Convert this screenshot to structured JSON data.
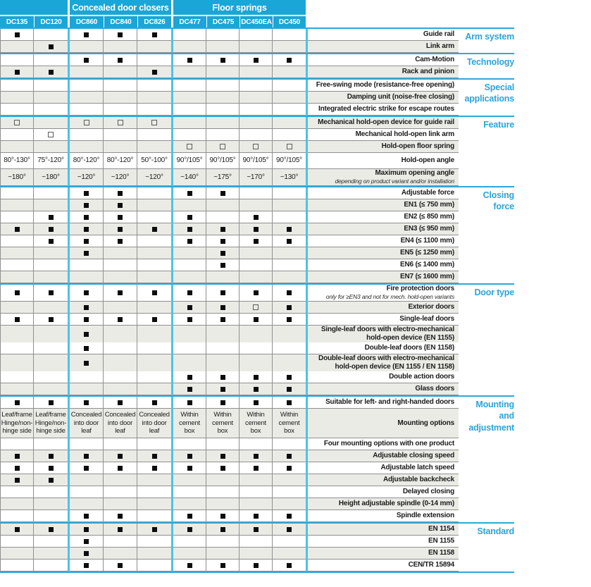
{
  "colors": {
    "header_cyan": "#1AA6D6",
    "divider_cyan": "#4FC2E5",
    "rule_cyan": "#2AA9DA",
    "category_text_cyan": "#2BA4D9",
    "stripe_gray": "#EBEBE6",
    "border_gray": "#8F8F8F",
    "mark_black": "#0D0D0D"
  },
  "legend": {
    "f": "filled-square",
    "h": "hollow-square",
    "": "empty"
  },
  "header": {
    "groups": [
      {
        "label": "",
        "span": 2
      },
      {
        "label": "Concealed door closers",
        "span": 3
      },
      {
        "label": "Floor springs",
        "span": 4
      }
    ],
    "products": [
      "DC135",
      "DC120",
      "DC860",
      "DC840",
      "DC826",
      "DC477",
      "DC475",
      "DC450EA",
      "DC450"
    ]
  },
  "sections": [
    {
      "category": "Arm system",
      "rows": [
        {
          "label": "Guide rail",
          "cells": [
            "f",
            "",
            "f",
            "f",
            "f",
            "",
            "",
            "",
            ""
          ]
        },
        {
          "label": "Link arm",
          "cells": [
            "",
            "f",
            "",
            "",
            "",
            "",
            "",
            "",
            ""
          ]
        }
      ]
    },
    {
      "category": "Technology",
      "rows": [
        {
          "label": "Cam-Motion",
          "cells": [
            "",
            "",
            "f",
            "f",
            "",
            "f",
            "f",
            "f",
            "f"
          ]
        },
        {
          "label": "Rack and pinion",
          "cells": [
            "f",
            "f",
            "",
            "",
            "f",
            "",
            "",
            "",
            ""
          ]
        }
      ]
    },
    {
      "category": "Special applications",
      "rows": [
        {
          "label": "Free-swing mode (resistance-free opening)",
          "cells": [
            "",
            "",
            "",
            "",
            "",
            "",
            "",
            "",
            ""
          ]
        },
        {
          "label": "Damping unit (noise-free closing)",
          "cells": [
            "",
            "",
            "",
            "",
            "",
            "",
            "",
            "",
            ""
          ]
        },
        {
          "label": "Integrated electric strike for escape routes",
          "cells": [
            "",
            "",
            "",
            "",
            "",
            "",
            "",
            "",
            ""
          ]
        }
      ]
    },
    {
      "category": "Feature",
      "rows": [
        {
          "label": "Mechanical hold-open device for guide rail",
          "cells": [
            "h",
            "",
            "h",
            "h",
            "h",
            "",
            "",
            "",
            ""
          ]
        },
        {
          "label": "Mechanical hold-open link arm",
          "cells": [
            "",
            "h",
            "",
            "",
            "",
            "",
            "",
            "",
            ""
          ]
        },
        {
          "label": "Hold-open floor spring",
          "cells": [
            "",
            "",
            "",
            "",
            "",
            "h",
            "h",
            "h",
            "h"
          ]
        },
        {
          "label": "Hold-open angle",
          "type": "text",
          "cells": [
            "80°-130°",
            "75°-120°",
            "80°-120°",
            "80°-120°",
            "50°-100°",
            "90°/105°",
            "90°/105°",
            "90°/105°",
            "90°/105°"
          ]
        },
        {
          "label": "Maximum opening angle",
          "sublabel": "depending on product variant and/or installation",
          "type": "text",
          "cells": [
            "~180°",
            "~180°",
            "~120°",
            "~120°",
            "~120°",
            "~140°",
            "~175°",
            "~170°",
            "~130°"
          ]
        }
      ]
    },
    {
      "category": "Closing force",
      "rows": [
        {
          "label": "Adjustable force",
          "cells": [
            "",
            "",
            "f",
            "f",
            "",
            "f",
            "f",
            "",
            ""
          ]
        },
        {
          "label": "EN1 (≤ 750 mm)",
          "cells": [
            "",
            "",
            "f",
            "f",
            "",
            "",
            "",
            "",
            ""
          ]
        },
        {
          "label": "EN2 (≤ 850 mm)",
          "cells": [
            "",
            "f",
            "f",
            "f",
            "",
            "f",
            "",
            "f",
            ""
          ]
        },
        {
          "label": "EN3 (≤ 950 mm)",
          "cells": [
            "f",
            "f",
            "f",
            "f",
            "f",
            "f",
            "f",
            "f",
            "f"
          ]
        },
        {
          "label": "EN4 (≤ 1100 mm)",
          "cells": [
            "",
            "f",
            "f",
            "f",
            "",
            "f",
            "f",
            "f",
            "f"
          ]
        },
        {
          "label": "EN5 (≤ 1250 mm)",
          "cells": [
            "",
            "",
            "f",
            "",
            "",
            "",
            "f",
            "",
            ""
          ]
        },
        {
          "label": "EN6 (≤ 1400 mm)",
          "cells": [
            "",
            "",
            "",
            "",
            "",
            "",
            "f",
            "",
            ""
          ]
        },
        {
          "label": "EN7 (≤ 1600 mm)",
          "cells": [
            "",
            "",
            "",
            "",
            "",
            "",
            "",
            "",
            ""
          ]
        }
      ]
    },
    {
      "category": "Door type",
      "rows": [
        {
          "label": "Fire protection doors",
          "sublabel": "only for ≥EN3 and not for mech. hold-open variants",
          "cells": [
            "f",
            "f",
            "f",
            "f",
            "f",
            "f",
            "f",
            "f",
            "f"
          ]
        },
        {
          "label": "Exterior doors",
          "cells": [
            "",
            "",
            "f",
            "",
            "",
            "f",
            "f",
            "h",
            "f"
          ]
        },
        {
          "label": "Single-leaf doors",
          "cells": [
            "f",
            "f",
            "f",
            "f",
            "f",
            "f",
            "f",
            "f",
            "f"
          ]
        },
        {
          "label": "Single-leaf doors with electro-mechanical hold-open device (EN 1155)",
          "cells": [
            "",
            "",
            "f",
            "",
            "",
            "",
            "",
            "",
            ""
          ]
        },
        {
          "label": "Double-leaf doors (EN 1158)",
          "cells": [
            "",
            "",
            "f",
            "",
            "",
            "",
            "",
            "",
            ""
          ]
        },
        {
          "label": "Double-leaf doors with electro-mechanical hold-open device (EN 1155 / EN 1158)",
          "cells": [
            "",
            "",
            "f",
            "",
            "",
            "",
            "",
            "",
            ""
          ]
        },
        {
          "label": "Double action doors",
          "cells": [
            "",
            "",
            "",
            "",
            "",
            "f",
            "f",
            "f",
            "f"
          ]
        },
        {
          "label": "Glass doors",
          "cells": [
            "",
            "",
            "",
            "",
            "",
            "f",
            "f",
            "f",
            "f"
          ]
        }
      ]
    },
    {
      "category": "Mounting and adjustment",
      "rows": [
        {
          "label": "Suitable for left- and right-handed doors",
          "cells": [
            "f",
            "f",
            "f",
            "f",
            "f",
            "f",
            "f",
            "f",
            "f"
          ]
        },
        {
          "label": "Mounting options",
          "type": "text",
          "cells": [
            "Leaf/frame\nHinge/non-hinge side",
            "Leaf/frame\nHinge/non-hinge side",
            "Concealed into door leaf",
            "Concealed into door leaf",
            "Concealed into door leaf",
            "Within cement box",
            "Within cement box",
            "Within cement box",
            "Within cement box"
          ]
        },
        {
          "label": "Four mounting options with one product",
          "cells": [
            "",
            "",
            "",
            "",
            "",
            "",
            "",
            "",
            ""
          ]
        },
        {
          "label": "Adjustable closing speed",
          "cells": [
            "f",
            "f",
            "f",
            "f",
            "f",
            "f",
            "f",
            "f",
            "f"
          ]
        },
        {
          "label": "Adjustable latch speed",
          "cells": [
            "f",
            "f",
            "f",
            "f",
            "f",
            "f",
            "f",
            "f",
            "f"
          ]
        },
        {
          "label": "Adjustable backcheck",
          "cells": [
            "f",
            "f",
            "",
            "",
            "",
            "",
            "",
            "",
            ""
          ]
        },
        {
          "label": "Delayed closing",
          "cells": [
            "",
            "",
            "",
            "",
            "",
            "",
            "",
            "",
            ""
          ]
        },
        {
          "label": "Height adjustable spindle (0-14 mm)",
          "cells": [
            "",
            "",
            "",
            "",
            "",
            "",
            "",
            "",
            ""
          ]
        },
        {
          "label": "Spindle extension",
          "cells": [
            "",
            "",
            "f",
            "f",
            "",
            "f",
            "f",
            "f",
            "f"
          ]
        }
      ]
    },
    {
      "category": "Standard",
      "rows": [
        {
          "label": "EN 1154",
          "cells": [
            "f",
            "f",
            "f",
            "f",
            "f",
            "f",
            "f",
            "f",
            "f"
          ]
        },
        {
          "label": "EN 1155",
          "cells": [
            "",
            "",
            "f",
            "",
            "",
            "",
            "",
            "",
            ""
          ]
        },
        {
          "label": "EN 1158",
          "cells": [
            "",
            "",
            "f",
            "",
            "",
            "",
            "",
            "",
            ""
          ]
        },
        {
          "label": "CEN/TR 15894",
          "cells": [
            "",
            "",
            "f",
            "f",
            "",
            "f",
            "f",
            "f",
            "f"
          ]
        }
      ]
    }
  ]
}
